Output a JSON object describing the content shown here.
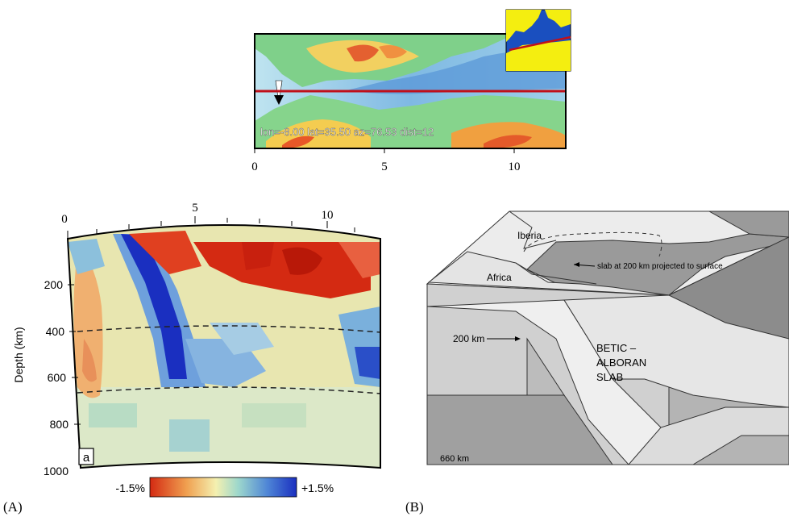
{
  "map": {
    "annotation": "lon=-8.00 lat=35.50 az=76.53 dist=12",
    "x_ticks": [
      "0",
      "5",
      "10"
    ]
  },
  "section": {
    "top_ticks": [
      "0",
      "5",
      "10"
    ],
    "depth_label": "Depth (km)",
    "depth_ticks": [
      "200",
      "400",
      "600",
      "800",
      "1000"
    ],
    "panel_tag": "a",
    "scale_min": "-1.5%",
    "scale_max": "+1.5%"
  },
  "block": {
    "label_iberia": "Iberia",
    "label_africa": "Africa",
    "slab_note": "slab at 200 km projected to surface",
    "label_200km": "200 km",
    "slab_line1": "BETIC –",
    "slab_line2": "ALBORAN",
    "slab_line3": "SLAB",
    "label_660km": "660 km"
  },
  "captions": {
    "a": "(A)",
    "b": "(B)"
  },
  "colors": {
    "fast": "#1a33c8",
    "slow": "#d42a12",
    "neutral": "#e8e6b0",
    "land_yellow": "#f4ee10",
    "sea_blue": "#1a4fbf",
    "section_line": "#c0101a"
  }
}
